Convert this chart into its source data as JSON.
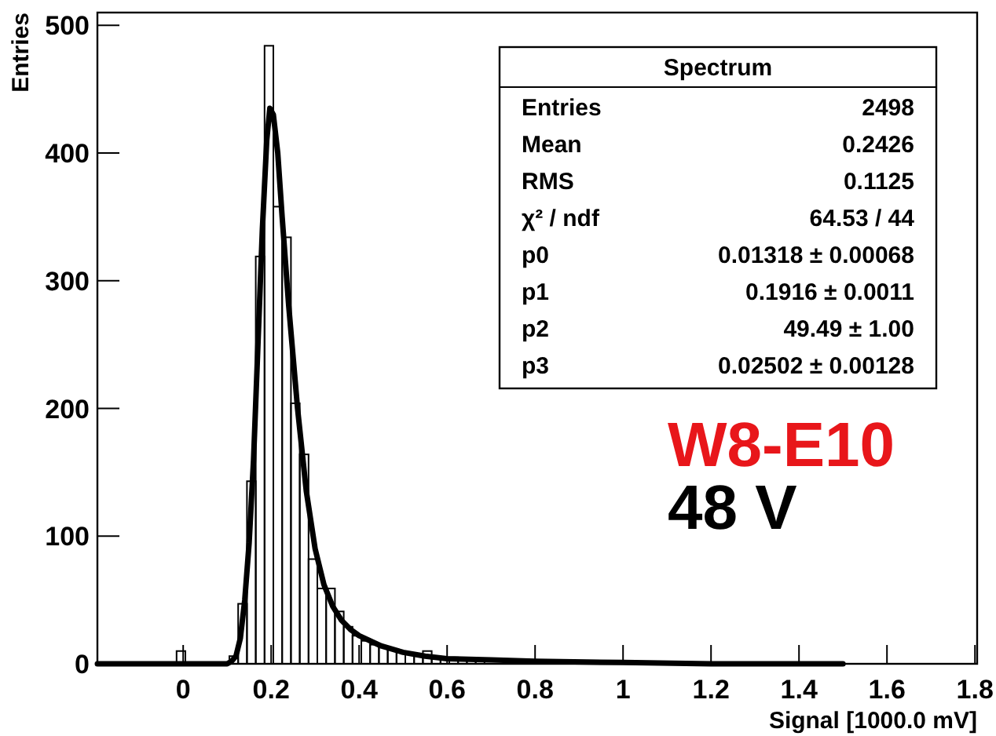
{
  "chart_data": {
    "type": "histogram",
    "xlabel": "Signal [1000.0 mV]",
    "ylabel": "Entries",
    "bins": [
      -0.195,
      -0.175,
      -0.155,
      -0.135,
      -0.115,
      -0.095,
      -0.075,
      -0.055,
      -0.035,
      -0.015,
      0.005,
      0.025,
      0.045,
      0.065,
      0.085,
      0.105,
      0.125,
      0.145,
      0.165,
      0.185,
      0.205,
      0.225,
      0.245,
      0.265,
      0.285,
      0.305,
      0.325,
      0.345,
      0.365,
      0.385,
      0.405,
      0.425,
      0.445,
      0.465,
      0.485,
      0.505,
      0.525,
      0.545,
      0.565,
      0.585,
      0.605,
      0.625,
      0.645,
      0.665,
      0.685,
      0.705,
      0.725,
      0.745,
      0.765,
      0.785,
      0.805,
      0.825,
      0.845,
      0.865,
      0.885,
      0.905,
      0.925,
      0.945,
      0.965,
      0.985,
      1.005,
      1.025,
      1.045,
      1.065,
      1.085,
      1.105,
      1.125,
      1.145,
      1.165,
      1.185,
      1.205,
      1.225,
      1.245,
      1.265,
      1.285,
      1.305,
      1.325,
      1.345,
      1.365,
      1.385,
      1.405,
      1.425,
      1.445,
      1.465,
      1.485,
      1.505,
      1.525,
      1.545,
      1.565,
      1.585,
      1.605,
      1.625,
      1.645,
      1.665,
      1.685,
      1.705,
      1.725,
      1.745,
      1.765,
      1.785,
      1.805
    ],
    "series": [
      {
        "color": "#000000",
        "values": [
          0,
          0,
          0,
          0,
          0,
          0,
          0,
          0,
          0,
          10,
          0,
          0,
          0,
          0,
          0,
          6,
          47,
          143,
          319,
          484,
          358,
          334,
          204,
          164,
          82,
          59,
          59,
          41,
          29,
          22,
          18,
          15,
          13,
          11,
          9,
          8,
          7,
          10,
          6,
          5,
          5,
          4,
          4,
          3,
          null,
          null,
          null,
          null,
          null,
          null,
          null,
          1,
          1,
          1,
          1,
          1,
          1,
          1,
          1,
          1,
          1,
          0,
          0,
          0,
          0,
          0,
          0,
          0,
          0,
          0,
          0,
          0,
          0,
          0,
          0,
          0,
          0,
          0,
          0,
          0,
          0,
          0,
          0,
          0,
          0,
          0,
          0,
          0,
          0,
          0,
          0,
          0,
          0,
          0,
          0,
          0,
          0,
          0,
          0,
          0
        ]
      },
      {
        "type": "line",
        "color": "#000000",
        "x": [
          -0.195,
          0.1,
          0.11,
          0.12,
          0.13,
          0.14,
          0.15,
          0.16,
          0.17,
          0.18,
          0.19,
          0.197,
          0.205,
          0.215,
          0.225,
          0.24,
          0.26,
          0.28,
          0.3,
          0.32,
          0.34,
          0.36,
          0.38,
          0.4,
          0.45,
          0.5,
          0.55,
          0.6,
          0.7,
          0.8,
          1.0,
          1.2,
          1.5
        ],
        "values": [
          0,
          0,
          2,
          6,
          20,
          50,
          95,
          160,
          250,
          340,
          410,
          435,
          430,
          400,
          350,
          280,
          200,
          135,
          90,
          62,
          45,
          34,
          27,
          22,
          14,
          9,
          6,
          4,
          3,
          2,
          1,
          0,
          0
        ]
      }
    ],
    "xlim": [
      -0.195,
      1.805
    ],
    "xticks": [
      0,
      0.2,
      0.4,
      0.6,
      0.8,
      1,
      1.2,
      1.4,
      1.6,
      1.8
    ],
    "ylim": [
      0,
      510
    ],
    "yticks": [
      0,
      100,
      200,
      300,
      400,
      500
    ],
    "grid": false,
    "annotations": [
      "Spectrum",
      "Entries",
      "2498",
      "Mean",
      "0.2426",
      "RMS",
      "0.1125",
      "χ² / ndf",
      "64.53 / 44",
      "p0",
      "0.01318 ± 0.00068",
      "p1",
      "0.1916 ± 0.0011",
      "p2",
      "49.49 ± 1.00",
      "p3",
      "0.02502 ± 0.00128",
      "W8-E10",
      "48 V"
    ]
  }
}
